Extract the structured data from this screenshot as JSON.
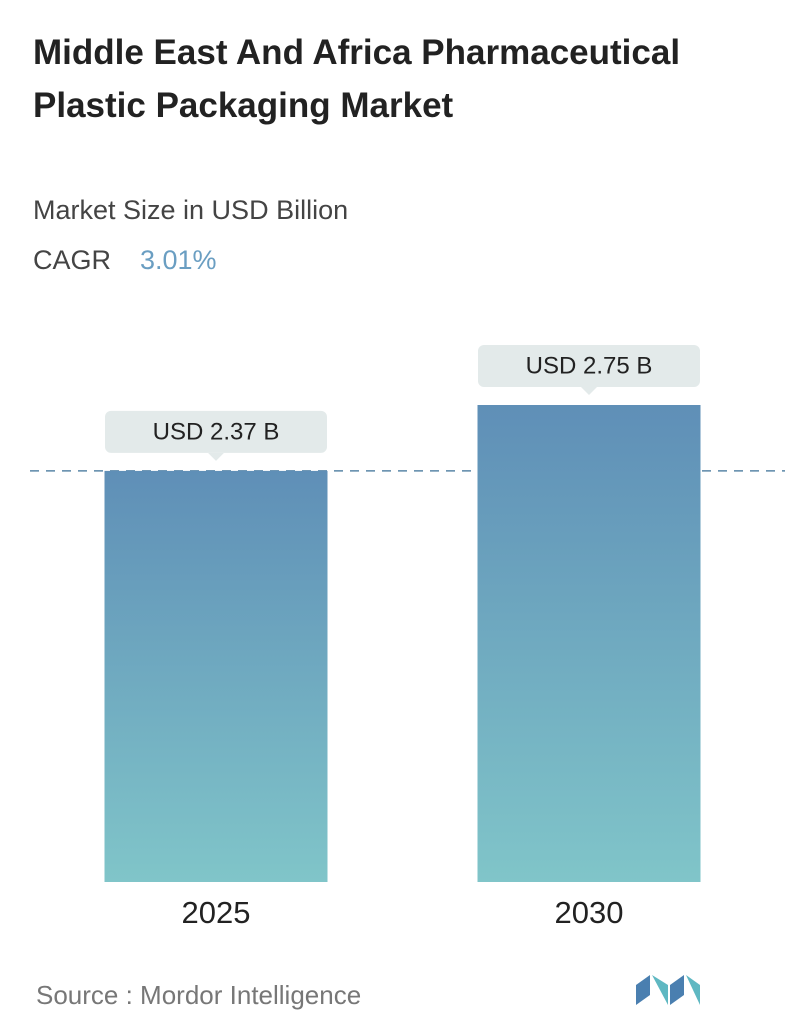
{
  "chart_data": {
    "type": "bar",
    "title": "Middle East And Africa Pharmaceutical Plastic Packaging Market",
    "subtitle": "Market Size in USD Billion",
    "cagr_label": "CAGR",
    "cagr_value": "3.01%",
    "categories": [
      "2025",
      "2030"
    ],
    "values": [
      2.37,
      2.75
    ],
    "value_labels": [
      "USD 2.37 B",
      "USD 2.75 B"
    ],
    "color": [
      "#5f8fb7",
      "#80c5c9"
    ],
    "source": "Source :  Mordor Intelligence"
  }
}
